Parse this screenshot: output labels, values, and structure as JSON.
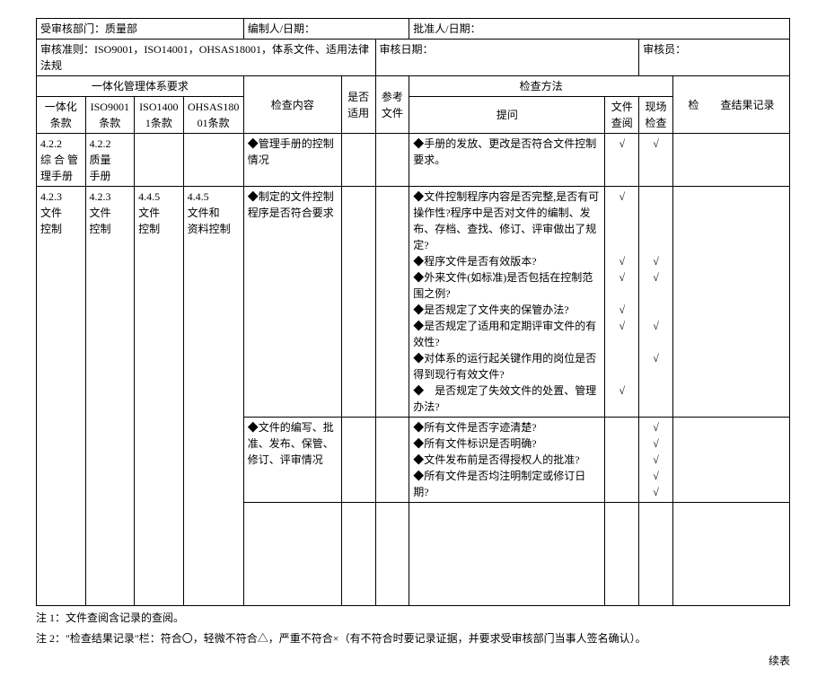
{
  "header": {
    "dept_label": "受审核部门：",
    "dept_value": "质量部",
    "preparer_label": "编制人/日期：",
    "approver_label": "批准人/日期：",
    "criteria_label": "审核准则：",
    "criteria_value": "ISO9001，ISO14001，OHSAS18001，体系文件、适用法律法规",
    "audit_date_label": "审核日期：",
    "auditor_label": "审核员："
  },
  "thead": {
    "group1": "一体化管理体系要求",
    "col1": "一体化条款",
    "col2": "ISO9001条款",
    "col3": "ISO14001条款",
    "col4": "OHSAS18001条款",
    "col5": "检查内容",
    "col6": "是否适用",
    "col7": "参考文件",
    "group2": "检查方法",
    "col8": "提问",
    "col9": "文件查阅",
    "col10": "现场检查",
    "col11": "检　　查结果记录"
  },
  "rows": [
    {
      "c1": "4.2.2\n综 合 管理手册",
      "c2": "4.2.2\n质量\n手册",
      "c3": "",
      "c4": "",
      "c5": "◆管理手册的控制情况",
      "c6": "",
      "c7": "",
      "c8": "◆手册的发放、更改是否符合文件控制要求。",
      "c9": "√",
      "c10": "√",
      "c11": ""
    },
    {
      "c1": "4.2.3\n文件\n控制",
      "c2": "4.2.3\n文件\n控制",
      "c3": "4.4.5\n文件\n控制",
      "c4": "4.4.5\n文件和\n资料控制",
      "c5": "◆制定的文件控制程序是否符合要求",
      "c6": "",
      "c7": "",
      "c8": "◆文件控制程序内容是否完整,是否有可操作性?程序中是否对文件的编制、发布、存档、查找、修订、评审做出了规定?\n◆程序文件是否有效版本?\n◆外来文件(如标准)是否包括在控制范围之例?\n◆是否规定了文件夹的保管办法?\n◆是否规定了适用和定期评审文件的有效性?\n◆对体系的运行起关键作用的岗位是否得到现行有效文件?\n◆　是否规定了失效文件的处置、管理办法?",
      "c9": "√\n\n\n\n√\n√\n\n√\n√\n\n\n\n√",
      "c10": "\n\n\n\n√\n√\n\n\n√\n\n√",
      "c11": ""
    },
    {
      "c1_cont": true,
      "c5": "◆文件的编写、批准、发布、保管、修订、评审情况",
      "c6": "",
      "c7": "",
      "c8": "◆所有文件是否字迹清楚?\n◆所有文件标识是否明确?\n◆文件发布前是否得授权人的批准?\n◆所有文件是否均注明制定或修订日期?",
      "c9": "",
      "c10": "√\n√\n√\n√\n√",
      "c11": ""
    }
  ],
  "footer": {
    "note1": "注 1：文件查阅含记录的查阅。",
    "note2": "注 2：\"检查结果记录\"栏：符合〇，轻微不符合△，严重不符合×（有不符合时要记录证据，并要求受审核部门当事人签名确认）。",
    "cont": "续表"
  },
  "dims": {
    "filler_height": 110
  }
}
